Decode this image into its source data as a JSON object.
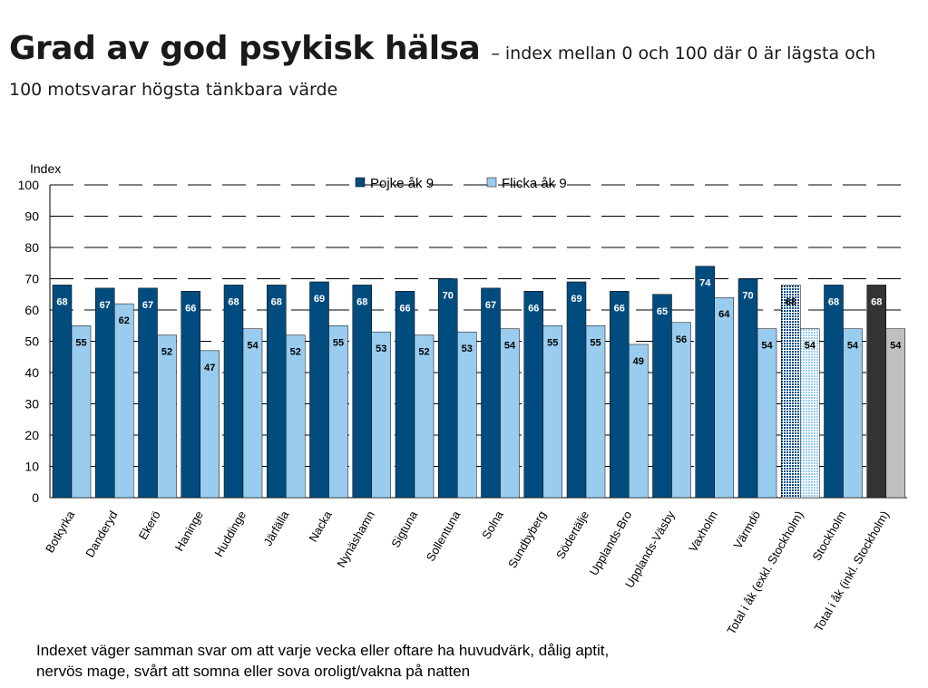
{
  "title": {
    "main": "Grad av god psykisk hälsa",
    "sub": "– index mellan 0 och 100 där 0 är lägsta och",
    "sub2": "100 motsvarar högsta tänkbara värde"
  },
  "footnote": {
    "line1": "Indexet väger samman svar om att varje vecka eller oftare ha huvudvärk, dålig aptit,",
    "line2": "nervös mage, svårt att somna eller sova oroligt/vakna på natten"
  },
  "colors": {
    "boy": "#004c7f",
    "girl": "#99ccee",
    "total_dark": "#333333",
    "total_grey": "#c0c0c0",
    "grid": "#000000"
  },
  "chart_data": {
    "type": "bar",
    "ylabel": "Index",
    "ylim": [
      0,
      100
    ],
    "yticks": [
      0,
      10,
      20,
      30,
      40,
      50,
      60,
      70,
      80,
      90,
      100
    ],
    "grid": true,
    "legend_position": "top",
    "categories": [
      "Botkyrka",
      "Danderyd",
      "Ekerö",
      "Haninge",
      "Huddinge",
      "Järfälla",
      "Nacka",
      "Nynäshamn",
      "Sigtuna",
      "Sollentuna",
      "Solna",
      "Sundbyberg",
      "Södertälje",
      "Upplands-Bro",
      "Upplands-Väsby",
      "Vaxholm",
      "Värmdö",
      "Total i åk (exkl. Stockholm)",
      "Stockholm",
      "Total i åk (inkl. Stockholm)"
    ],
    "series": [
      {
        "name": "Pojke åk 9",
        "values": [
          68,
          67,
          67,
          66,
          68,
          68,
          69,
          68,
          66,
          70,
          67,
          66,
          69,
          66,
          65,
          74,
          70,
          68,
          68,
          68
        ]
      },
      {
        "name": "Flicka åk 9",
        "values": [
          55,
          62,
          52,
          47,
          54,
          52,
          55,
          53,
          52,
          53,
          54,
          55,
          55,
          49,
          56,
          64,
          54,
          54,
          54,
          54
        ]
      }
    ]
  }
}
